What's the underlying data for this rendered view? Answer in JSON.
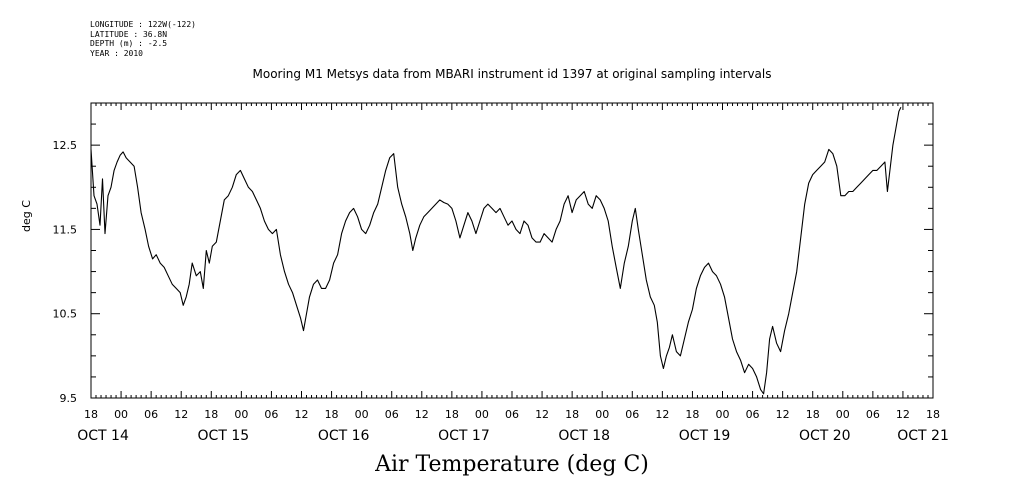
{
  "meta_lines": [
    {
      "label": "LONGITUDE",
      "value": "122W(-122)"
    },
    {
      "label": "LATITUDE",
      "value": "36.8N"
    },
    {
      "label": "DEPTH (m)",
      "value": "-2.5"
    },
    {
      "label": "YEAR",
      "value": "2010"
    }
  ],
  "chart_data": {
    "type": "line",
    "title": "Mooring M1 Metsys data from MBARI instrument id 1397 at original sampling intervals",
    "xlabel": "Air Temperature (deg C)",
    "ylabel": "deg C",
    "ylim": [
      9.5,
      13.0
    ],
    "yticks": [
      9.5,
      10.5,
      11.5,
      12.5
    ],
    "xlim_hours": [
      0,
      168
    ],
    "hour_labels": [
      "18",
      "00",
      "06",
      "12",
      "18",
      "00",
      "06",
      "12",
      "18",
      "00",
      "06",
      "12",
      "18",
      "00",
      "06",
      "12",
      "18",
      "00",
      "06",
      "12",
      "18",
      "00",
      "06",
      "12",
      "18",
      "00",
      "06",
      "12",
      "18"
    ],
    "day_labels": [
      {
        "text": "OCT 14",
        "hour": 6
      },
      {
        "text": "OCT 15",
        "hour": 30
      },
      {
        "text": "OCT 16",
        "hour": 54
      },
      {
        "text": "OCT 17",
        "hour": 78
      },
      {
        "text": "OCT 18",
        "hour": 102
      },
      {
        "text": "OCT 19",
        "hour": 126
      },
      {
        "text": "OCT 20",
        "hour": 150
      },
      {
        "text": "OCT 21",
        "hour": 174
      }
    ],
    "series": [
      {
        "points": [
          [
            0,
            12.45
          ],
          [
            0.6,
            11.9
          ],
          [
            1.2,
            11.8
          ],
          [
            1.8,
            11.55
          ],
          [
            2.3,
            12.1
          ],
          [
            2.8,
            11.45
          ],
          [
            3.4,
            11.9
          ],
          [
            4.0,
            12.0
          ],
          [
            4.6,
            12.2
          ],
          [
            5.2,
            12.3
          ],
          [
            5.8,
            12.38
          ],
          [
            6.4,
            12.42
          ],
          [
            7.0,
            12.35
          ],
          [
            7.8,
            12.3
          ],
          [
            8.6,
            12.25
          ],
          [
            9.3,
            12.0
          ],
          [
            10.0,
            11.7
          ],
          [
            10.8,
            11.5
          ],
          [
            11.5,
            11.3
          ],
          [
            12.3,
            11.15
          ],
          [
            13.0,
            11.2
          ],
          [
            13.8,
            11.1
          ],
          [
            14.6,
            11.05
          ],
          [
            15.4,
            10.95
          ],
          [
            16.2,
            10.85
          ],
          [
            17.0,
            10.8
          ],
          [
            17.8,
            10.75
          ],
          [
            18.4,
            10.6
          ],
          [
            19.0,
            10.7
          ],
          [
            19.6,
            10.85
          ],
          [
            20.2,
            11.1
          ],
          [
            21.0,
            10.95
          ],
          [
            21.8,
            11.0
          ],
          [
            22.4,
            10.8
          ],
          [
            23.0,
            11.25
          ],
          [
            23.6,
            11.1
          ],
          [
            24.2,
            11.3
          ],
          [
            25.0,
            11.35
          ],
          [
            25.8,
            11.6
          ],
          [
            26.6,
            11.85
          ],
          [
            27.4,
            11.9
          ],
          [
            28.2,
            12.0
          ],
          [
            29.0,
            12.15
          ],
          [
            29.8,
            12.2
          ],
          [
            30.6,
            12.1
          ],
          [
            31.4,
            12.0
          ],
          [
            32.2,
            11.95
          ],
          [
            33.0,
            11.85
          ],
          [
            33.8,
            11.75
          ],
          [
            34.6,
            11.6
          ],
          [
            35.4,
            11.5
          ],
          [
            36.2,
            11.45
          ],
          [
            37.0,
            11.5
          ],
          [
            37.8,
            11.2
          ],
          [
            38.6,
            11.0
          ],
          [
            39.4,
            10.85
          ],
          [
            40.2,
            10.75
          ],
          [
            41.0,
            10.6
          ],
          [
            41.8,
            10.45
          ],
          [
            42.4,
            10.3
          ],
          [
            43.0,
            10.5
          ],
          [
            43.6,
            10.7
          ],
          [
            44.4,
            10.85
          ],
          [
            45.2,
            10.9
          ],
          [
            46.0,
            10.8
          ],
          [
            46.8,
            10.8
          ],
          [
            47.6,
            10.9
          ],
          [
            48.4,
            11.1
          ],
          [
            49.2,
            11.2
          ],
          [
            50.0,
            11.45
          ],
          [
            50.8,
            11.6
          ],
          [
            51.6,
            11.7
          ],
          [
            52.4,
            11.75
          ],
          [
            53.2,
            11.65
          ],
          [
            54.0,
            11.5
          ],
          [
            54.8,
            11.45
          ],
          [
            55.6,
            11.55
          ],
          [
            56.4,
            11.7
          ],
          [
            57.2,
            11.8
          ],
          [
            58.0,
            12.0
          ],
          [
            58.8,
            12.2
          ],
          [
            59.6,
            12.35
          ],
          [
            60.4,
            12.4
          ],
          [
            61.2,
            12.0
          ],
          [
            62.0,
            11.8
          ],
          [
            62.8,
            11.65
          ],
          [
            63.6,
            11.45
          ],
          [
            64.2,
            11.25
          ],
          [
            64.8,
            11.4
          ],
          [
            65.6,
            11.55
          ],
          [
            66.4,
            11.65
          ],
          [
            67.2,
            11.7
          ],
          [
            68.0,
            11.75
          ],
          [
            68.8,
            11.8
          ],
          [
            69.6,
            11.85
          ],
          [
            70.4,
            11.82
          ],
          [
            71.2,
            11.8
          ],
          [
            72.0,
            11.75
          ],
          [
            72.8,
            11.6
          ],
          [
            73.6,
            11.4
          ],
          [
            74.4,
            11.55
          ],
          [
            75.2,
            11.7
          ],
          [
            76.0,
            11.6
          ],
          [
            76.8,
            11.45
          ],
          [
            77.6,
            11.6
          ],
          [
            78.4,
            11.75
          ],
          [
            79.2,
            11.8
          ],
          [
            80.0,
            11.75
          ],
          [
            80.8,
            11.7
          ],
          [
            81.6,
            11.75
          ],
          [
            82.4,
            11.65
          ],
          [
            83.2,
            11.55
          ],
          [
            84.0,
            11.6
          ],
          [
            84.8,
            11.5
          ],
          [
            85.6,
            11.45
          ],
          [
            86.4,
            11.6
          ],
          [
            87.2,
            11.55
          ],
          [
            88.0,
            11.4
          ],
          [
            88.8,
            11.35
          ],
          [
            89.6,
            11.35
          ],
          [
            90.4,
            11.45
          ],
          [
            91.2,
            11.4
          ],
          [
            92.0,
            11.35
          ],
          [
            92.8,
            11.5
          ],
          [
            93.6,
            11.6
          ],
          [
            94.4,
            11.8
          ],
          [
            95.2,
            11.9
          ],
          [
            96.0,
            11.7
          ],
          [
            96.8,
            11.85
          ],
          [
            97.6,
            11.9
          ],
          [
            98.4,
            11.95
          ],
          [
            99.2,
            11.8
          ],
          [
            100.0,
            11.75
          ],
          [
            100.8,
            11.9
          ],
          [
            101.6,
            11.85
          ],
          [
            102.4,
            11.75
          ],
          [
            103.2,
            11.6
          ],
          [
            104.0,
            11.3
          ],
          [
            104.8,
            11.05
          ],
          [
            105.6,
            10.8
          ],
          [
            106.4,
            11.1
          ],
          [
            107.2,
            11.3
          ],
          [
            108.0,
            11.6
          ],
          [
            108.6,
            11.75
          ],
          [
            109.2,
            11.5
          ],
          [
            110.0,
            11.2
          ],
          [
            110.8,
            10.9
          ],
          [
            111.6,
            10.7
          ],
          [
            112.4,
            10.6
          ],
          [
            113.0,
            10.4
          ],
          [
            113.6,
            10.0
          ],
          [
            114.2,
            9.85
          ],
          [
            114.8,
            10.0
          ],
          [
            115.4,
            10.1
          ],
          [
            116.0,
            10.25
          ],
          [
            116.8,
            10.05
          ],
          [
            117.6,
            10.0
          ],
          [
            118.4,
            10.2
          ],
          [
            119.2,
            10.4
          ],
          [
            120.0,
            10.55
          ],
          [
            120.8,
            10.8
          ],
          [
            121.6,
            10.95
          ],
          [
            122.4,
            11.05
          ],
          [
            123.2,
            11.1
          ],
          [
            124.0,
            11.0
          ],
          [
            124.8,
            10.95
          ],
          [
            125.6,
            10.85
          ],
          [
            126.4,
            10.7
          ],
          [
            127.2,
            10.45
          ],
          [
            128.0,
            10.2
          ],
          [
            128.8,
            10.05
          ],
          [
            129.6,
            9.95
          ],
          [
            130.4,
            9.8
          ],
          [
            131.2,
            9.9
          ],
          [
            132.0,
            9.85
          ],
          [
            132.8,
            9.75
          ],
          [
            133.6,
            9.6
          ],
          [
            134.2,
            9.55
          ],
          [
            134.8,
            9.8
          ],
          [
            135.4,
            10.2
          ],
          [
            136.0,
            10.35
          ],
          [
            136.8,
            10.15
          ],
          [
            137.6,
            10.05
          ],
          [
            138.4,
            10.3
          ],
          [
            139.2,
            10.5
          ],
          [
            140.0,
            10.75
          ],
          [
            140.8,
            11.0
          ],
          [
            141.6,
            11.4
          ],
          [
            142.4,
            11.8
          ],
          [
            143.2,
            12.05
          ],
          [
            144.0,
            12.15
          ],
          [
            144.8,
            12.2
          ],
          [
            145.6,
            12.25
          ],
          [
            146.4,
            12.3
          ],
          [
            147.2,
            12.45
          ],
          [
            148.0,
            12.4
          ],
          [
            148.8,
            12.25
          ],
          [
            149.6,
            11.9
          ],
          [
            150.4,
            11.9
          ],
          [
            151.2,
            11.95
          ],
          [
            152.0,
            11.95
          ],
          [
            152.8,
            12.0
          ],
          [
            153.6,
            12.05
          ],
          [
            154.4,
            12.1
          ],
          [
            155.2,
            12.15
          ],
          [
            156.0,
            12.2
          ],
          [
            156.8,
            12.2
          ],
          [
            157.6,
            12.25
          ],
          [
            158.4,
            12.3
          ],
          [
            158.9,
            11.95
          ],
          [
            159.4,
            12.2
          ],
          [
            160.0,
            12.5
          ],
          [
            160.6,
            12.7
          ],
          [
            161.2,
            12.9
          ],
          [
            161.6,
            12.95
          ]
        ]
      }
    ]
  }
}
